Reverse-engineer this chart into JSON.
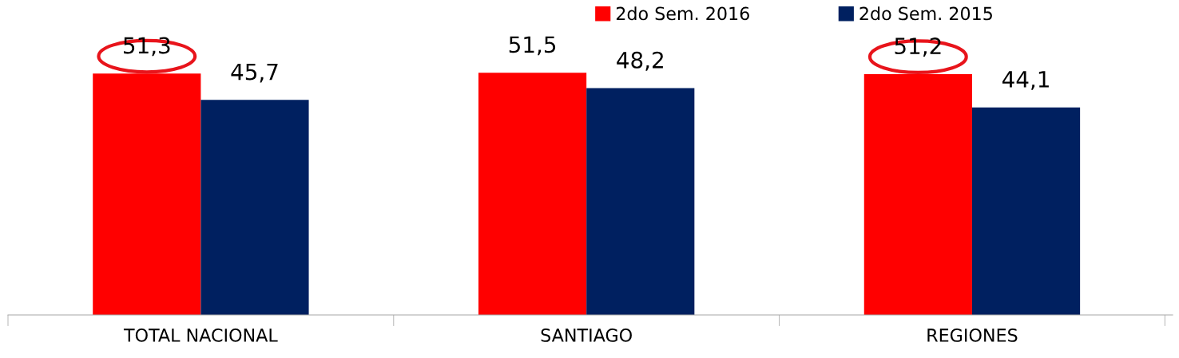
{
  "chart_data": {
    "type": "bar",
    "categories": [
      "TOTAL NACIONAL",
      "SANTIAGO",
      "REGIONES"
    ],
    "series": [
      {
        "name": "2do Sem. 2016",
        "color": "#ff0000",
        "values": [
          51.3,
          51.5,
          51.2
        ],
        "value_labels": [
          "51,3",
          "51,5",
          "51,2"
        ]
      },
      {
        "name": "2do Sem. 2015",
        "color": "#002060",
        "values": [
          45.7,
          48.2,
          44.1
        ],
        "value_labels": [
          "45,7",
          "48,2",
          "44,1"
        ]
      }
    ],
    "grid": false,
    "legend": "top right"
  }
}
